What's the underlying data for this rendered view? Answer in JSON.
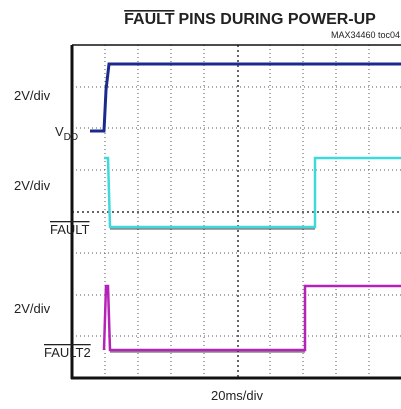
{
  "title": {
    "overlined": "FAULT",
    "rest": "PINS DURING POWER-UP"
  },
  "note": "MAX34460 toc04",
  "traces": [
    {
      "scale": "2V/div",
      "name": {
        "main": "V",
        "sub": "DD"
      }
    },
    {
      "scale": "2V/div",
      "name": {
        "main": "FAULT"
      }
    },
    {
      "scale": "2V/div",
      "name": {
        "main": "FAULT2"
      }
    }
  ],
  "timebase": "20ms/div"
}
